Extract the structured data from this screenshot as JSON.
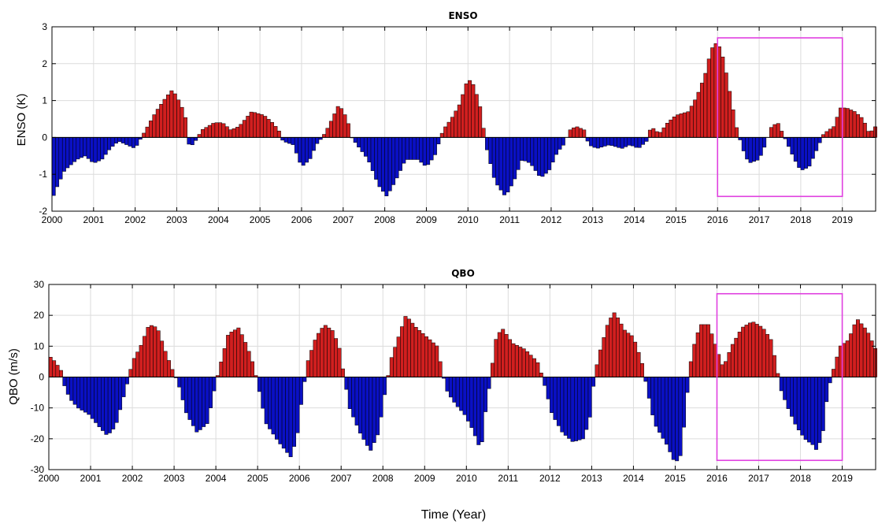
{
  "chart_data": [
    {
      "type": "bar",
      "title": "ENSO",
      "ylabel": "ENSO (K)",
      "xlabel": "",
      "ylim": [
        -2,
        3
      ],
      "xlim": [
        2000,
        2019.8
      ],
      "yticks": [
        -2,
        -1,
        0,
        1,
        2,
        3
      ],
      "xticks": [
        2000,
        2001,
        2002,
        2003,
        2004,
        2005,
        2006,
        2007,
        2008,
        2009,
        2010,
        2011,
        2012,
        2013,
        2014,
        2015,
        2016,
        2017,
        2018,
        2019
      ],
      "grid": true,
      "positive_color": "#d11f1f",
      "negative_color": "#0a10c4",
      "highlight": {
        "x": [
          2016.0,
          2019.0
        ],
        "y": [
          -1.6,
          2.7
        ],
        "color": "#e040e0"
      },
      "anchors": [
        [
          2000.0,
          -1.7
        ],
        [
          2000.1,
          -1.4
        ],
        [
          2000.3,
          -0.9
        ],
        [
          2000.6,
          -0.6
        ],
        [
          2000.8,
          -0.5
        ],
        [
          2001.0,
          -0.7
        ],
        [
          2001.2,
          -0.6
        ],
        [
          2001.4,
          -0.3
        ],
        [
          2001.6,
          -0.1
        ],
        [
          2001.8,
          -0.2
        ],
        [
          2002.0,
          -0.3
        ],
        [
          2002.2,
          0.1
        ],
        [
          2002.5,
          0.7
        ],
        [
          2002.75,
          1.1
        ],
        [
          2002.9,
          1.3
        ],
        [
          2003.1,
          0.9
        ],
        [
          2003.25,
          0.4
        ],
        [
          2003.3,
          -0.3
        ],
        [
          2003.45,
          -0.1
        ],
        [
          2003.6,
          0.2
        ],
        [
          2003.9,
          0.4
        ],
        [
          2004.1,
          0.4
        ],
        [
          2004.3,
          0.2
        ],
        [
          2004.5,
          0.3
        ],
        [
          2004.8,
          0.7
        ],
        [
          2005.1,
          0.6
        ],
        [
          2005.3,
          0.4
        ],
        [
          2005.45,
          0.2
        ],
        [
          2005.55,
          -0.1
        ],
        [
          2005.8,
          -0.2
        ],
        [
          2006.0,
          -0.8
        ],
        [
          2006.2,
          -0.6
        ],
        [
          2006.35,
          -0.2
        ],
        [
          2006.5,
          0.0
        ],
        [
          2006.65,
          0.3
        ],
        [
          2006.9,
          0.9
        ],
        [
          2007.1,
          0.5
        ],
        [
          2007.2,
          0.0
        ],
        [
          2007.4,
          -0.3
        ],
        [
          2007.6,
          -0.6
        ],
        [
          2007.85,
          -1.3
        ],
        [
          2008.05,
          -1.6
        ],
        [
          2008.25,
          -1.2
        ],
        [
          2008.5,
          -0.6
        ],
        [
          2008.8,
          -0.6
        ],
        [
          2009.0,
          -0.8
        ],
        [
          2009.2,
          -0.5
        ],
        [
          2009.4,
          0.2
        ],
        [
          2009.6,
          0.5
        ],
        [
          2009.8,
          0.9
        ],
        [
          2010.0,
          1.6
        ],
        [
          2010.15,
          1.4
        ],
        [
          2010.3,
          0.8
        ],
        [
          2010.45,
          -0.3
        ],
        [
          2010.65,
          -1.2
        ],
        [
          2010.9,
          -1.6
        ],
        [
          2011.1,
          -1.2
        ],
        [
          2011.3,
          -0.6
        ],
        [
          2011.5,
          -0.7
        ],
        [
          2011.75,
          -1.1
        ],
        [
          2011.95,
          -0.9
        ],
        [
          2012.15,
          -0.4
        ],
        [
          2012.3,
          -0.2
        ],
        [
          2012.45,
          0.2
        ],
        [
          2012.6,
          0.3
        ],
        [
          2012.8,
          0.2
        ],
        [
          2012.9,
          -0.2
        ],
        [
          2013.1,
          -0.3
        ],
        [
          2013.4,
          -0.2
        ],
        [
          2013.7,
          -0.3
        ],
        [
          2013.9,
          -0.2
        ],
        [
          2014.1,
          -0.3
        ],
        [
          2014.3,
          -0.1
        ],
        [
          2014.4,
          0.3
        ],
        [
          2014.6,
          0.1
        ],
        [
          2014.8,
          0.4
        ],
        [
          2015.0,
          0.6
        ],
        [
          2015.3,
          0.7
        ],
        [
          2015.5,
          1.1
        ],
        [
          2015.7,
          1.7
        ],
        [
          2015.85,
          2.4
        ],
        [
          2016.0,
          2.6
        ],
        [
          2016.15,
          2.1
        ],
        [
          2016.3,
          1.2
        ],
        [
          2016.45,
          0.3
        ],
        [
          2016.6,
          -0.3
        ],
        [
          2016.75,
          -0.7
        ],
        [
          2017.0,
          -0.6
        ],
        [
          2017.15,
          -0.2
        ],
        [
          2017.3,
          0.3
        ],
        [
          2017.45,
          0.4
        ],
        [
          2017.65,
          -0.1
        ],
        [
          2017.85,
          -0.6
        ],
        [
          2018.0,
          -0.9
        ],
        [
          2018.2,
          -0.8
        ],
        [
          2018.4,
          -0.3
        ],
        [
          2018.55,
          0.1
        ],
        [
          2018.8,
          0.3
        ],
        [
          2018.95,
          0.8
        ],
        [
          2019.1,
          0.8
        ],
        [
          2019.3,
          0.7
        ],
        [
          2019.5,
          0.5
        ],
        [
          2019.65,
          0.1
        ],
        [
          2019.8,
          0.3
        ]
      ]
    },
    {
      "type": "bar",
      "title": "QBO",
      "ylabel": "QBO (m/s)",
      "xlabel": "Time (Year)",
      "ylim": [
        -30,
        30
      ],
      "xlim": [
        2000,
        2019.8
      ],
      "yticks": [
        -30,
        -20,
        -10,
        0,
        10,
        20,
        30
      ],
      "xticks": [
        2000,
        2001,
        2002,
        2003,
        2004,
        2005,
        2006,
        2007,
        2008,
        2009,
        2010,
        2011,
        2012,
        2013,
        2014,
        2015,
        2016,
        2017,
        2018,
        2019
      ],
      "grid": true,
      "positive_color": "#d11f1f",
      "negative_color": "#0a10c4",
      "highlight": {
        "x": [
          2016.0,
          2019.0
        ],
        "y": [
          -27,
          27
        ],
        "color": "#e040e0"
      },
      "anchors": [
        [
          2000.0,
          7
        ],
        [
          2000.15,
          5
        ],
        [
          2000.3,
          2
        ],
        [
          2000.35,
          -2
        ],
        [
          2000.5,
          -7
        ],
        [
          2000.7,
          -10
        ],
        [
          2000.95,
          -12
        ],
        [
          2001.2,
          -16
        ],
        [
          2001.4,
          -19
        ],
        [
          2001.6,
          -16
        ],
        [
          2001.8,
          -6
        ],
        [
          2001.9,
          -1
        ],
        [
          2002.0,
          5
        ],
        [
          2002.2,
          10
        ],
        [
          2002.4,
          17
        ],
        [
          2002.6,
          16
        ],
        [
          2002.8,
          8
        ],
        [
          2003.0,
          1
        ],
        [
          2003.1,
          -2
        ],
        [
          2003.3,
          -12
        ],
        [
          2003.55,
          -18
        ],
        [
          2003.8,
          -15
        ],
        [
          2003.95,
          -5
        ],
        [
          2004.05,
          1
        ],
        [
          2004.3,
          14
        ],
        [
          2004.55,
          16
        ],
        [
          2004.75,
          10
        ],
        [
          2004.9,
          4
        ],
        [
          2005.0,
          -2
        ],
        [
          2005.2,
          -15
        ],
        [
          2005.5,
          -21
        ],
        [
          2005.8,
          -26
        ],
        [
          2005.95,
          -19
        ],
        [
          2006.05,
          -8
        ],
        [
          2006.2,
          5
        ],
        [
          2006.4,
          13
        ],
        [
          2006.6,
          17
        ],
        [
          2006.8,
          15
        ],
        [
          2006.95,
          10
        ],
        [
          2007.05,
          2
        ],
        [
          2007.2,
          -10
        ],
        [
          2007.45,
          -18
        ],
        [
          2007.7,
          -24
        ],
        [
          2007.9,
          -18
        ],
        [
          2008.05,
          -5
        ],
        [
          2008.2,
          6
        ],
        [
          2008.4,
          14
        ],
        [
          2008.55,
          20
        ],
        [
          2008.8,
          16
        ],
        [
          2009.05,
          13
        ],
        [
          2009.3,
          10
        ],
        [
          2009.45,
          0
        ],
        [
          2009.55,
          -5
        ],
        [
          2009.75,
          -9
        ],
        [
          2009.95,
          -12
        ],
        [
          2010.15,
          -17
        ],
        [
          2010.35,
          -24
        ],
        [
          2010.45,
          -12
        ],
        [
          2010.55,
          -3
        ],
        [
          2010.7,
          12
        ],
        [
          2010.85,
          16
        ],
        [
          2011.1,
          11
        ],
        [
          2011.4,
          9
        ],
        [
          2011.7,
          5
        ],
        [
          2011.8,
          1
        ],
        [
          2011.9,
          -4
        ],
        [
          2012.05,
          -12
        ],
        [
          2012.3,
          -18
        ],
        [
          2012.55,
          -21
        ],
        [
          2012.8,
          -20
        ],
        [
          2012.95,
          -14
        ],
        [
          2013.05,
          -2
        ],
        [
          2013.15,
          6
        ],
        [
          2013.4,
          18
        ],
        [
          2013.55,
          21
        ],
        [
          2013.8,
          15
        ],
        [
          2014.0,
          13
        ],
        [
          2014.2,
          5
        ],
        [
          2014.3,
          -2
        ],
        [
          2014.5,
          -15
        ],
        [
          2014.8,
          -22
        ],
        [
          2015.0,
          -28
        ],
        [
          2015.15,
          -25
        ],
        [
          2015.25,
          -10
        ],
        [
          2015.4,
          8
        ],
        [
          2015.6,
          17
        ],
        [
          2015.8,
          17
        ],
        [
          2015.9,
          13
        ],
        [
          2016.05,
          7
        ],
        [
          2016.15,
          3
        ],
        [
          2016.35,
          10
        ],
        [
          2016.6,
          16
        ],
        [
          2016.85,
          18
        ],
        [
          2017.1,
          16
        ],
        [
          2017.3,
          12
        ],
        [
          2017.45,
          2
        ],
        [
          2017.5,
          -3
        ],
        [
          2017.7,
          -10
        ],
        [
          2017.9,
          -16
        ],
        [
          2018.1,
          -20
        ],
        [
          2018.3,
          -22
        ],
        [
          2018.4,
          -24
        ],
        [
          2018.55,
          -17
        ],
        [
          2018.65,
          -5
        ],
        [
          2018.8,
          3
        ],
        [
          2018.95,
          10
        ],
        [
          2019.15,
          12
        ],
        [
          2019.35,
          19
        ],
        [
          2019.6,
          15
        ],
        [
          2019.8,
          9
        ]
      ]
    }
  ]
}
